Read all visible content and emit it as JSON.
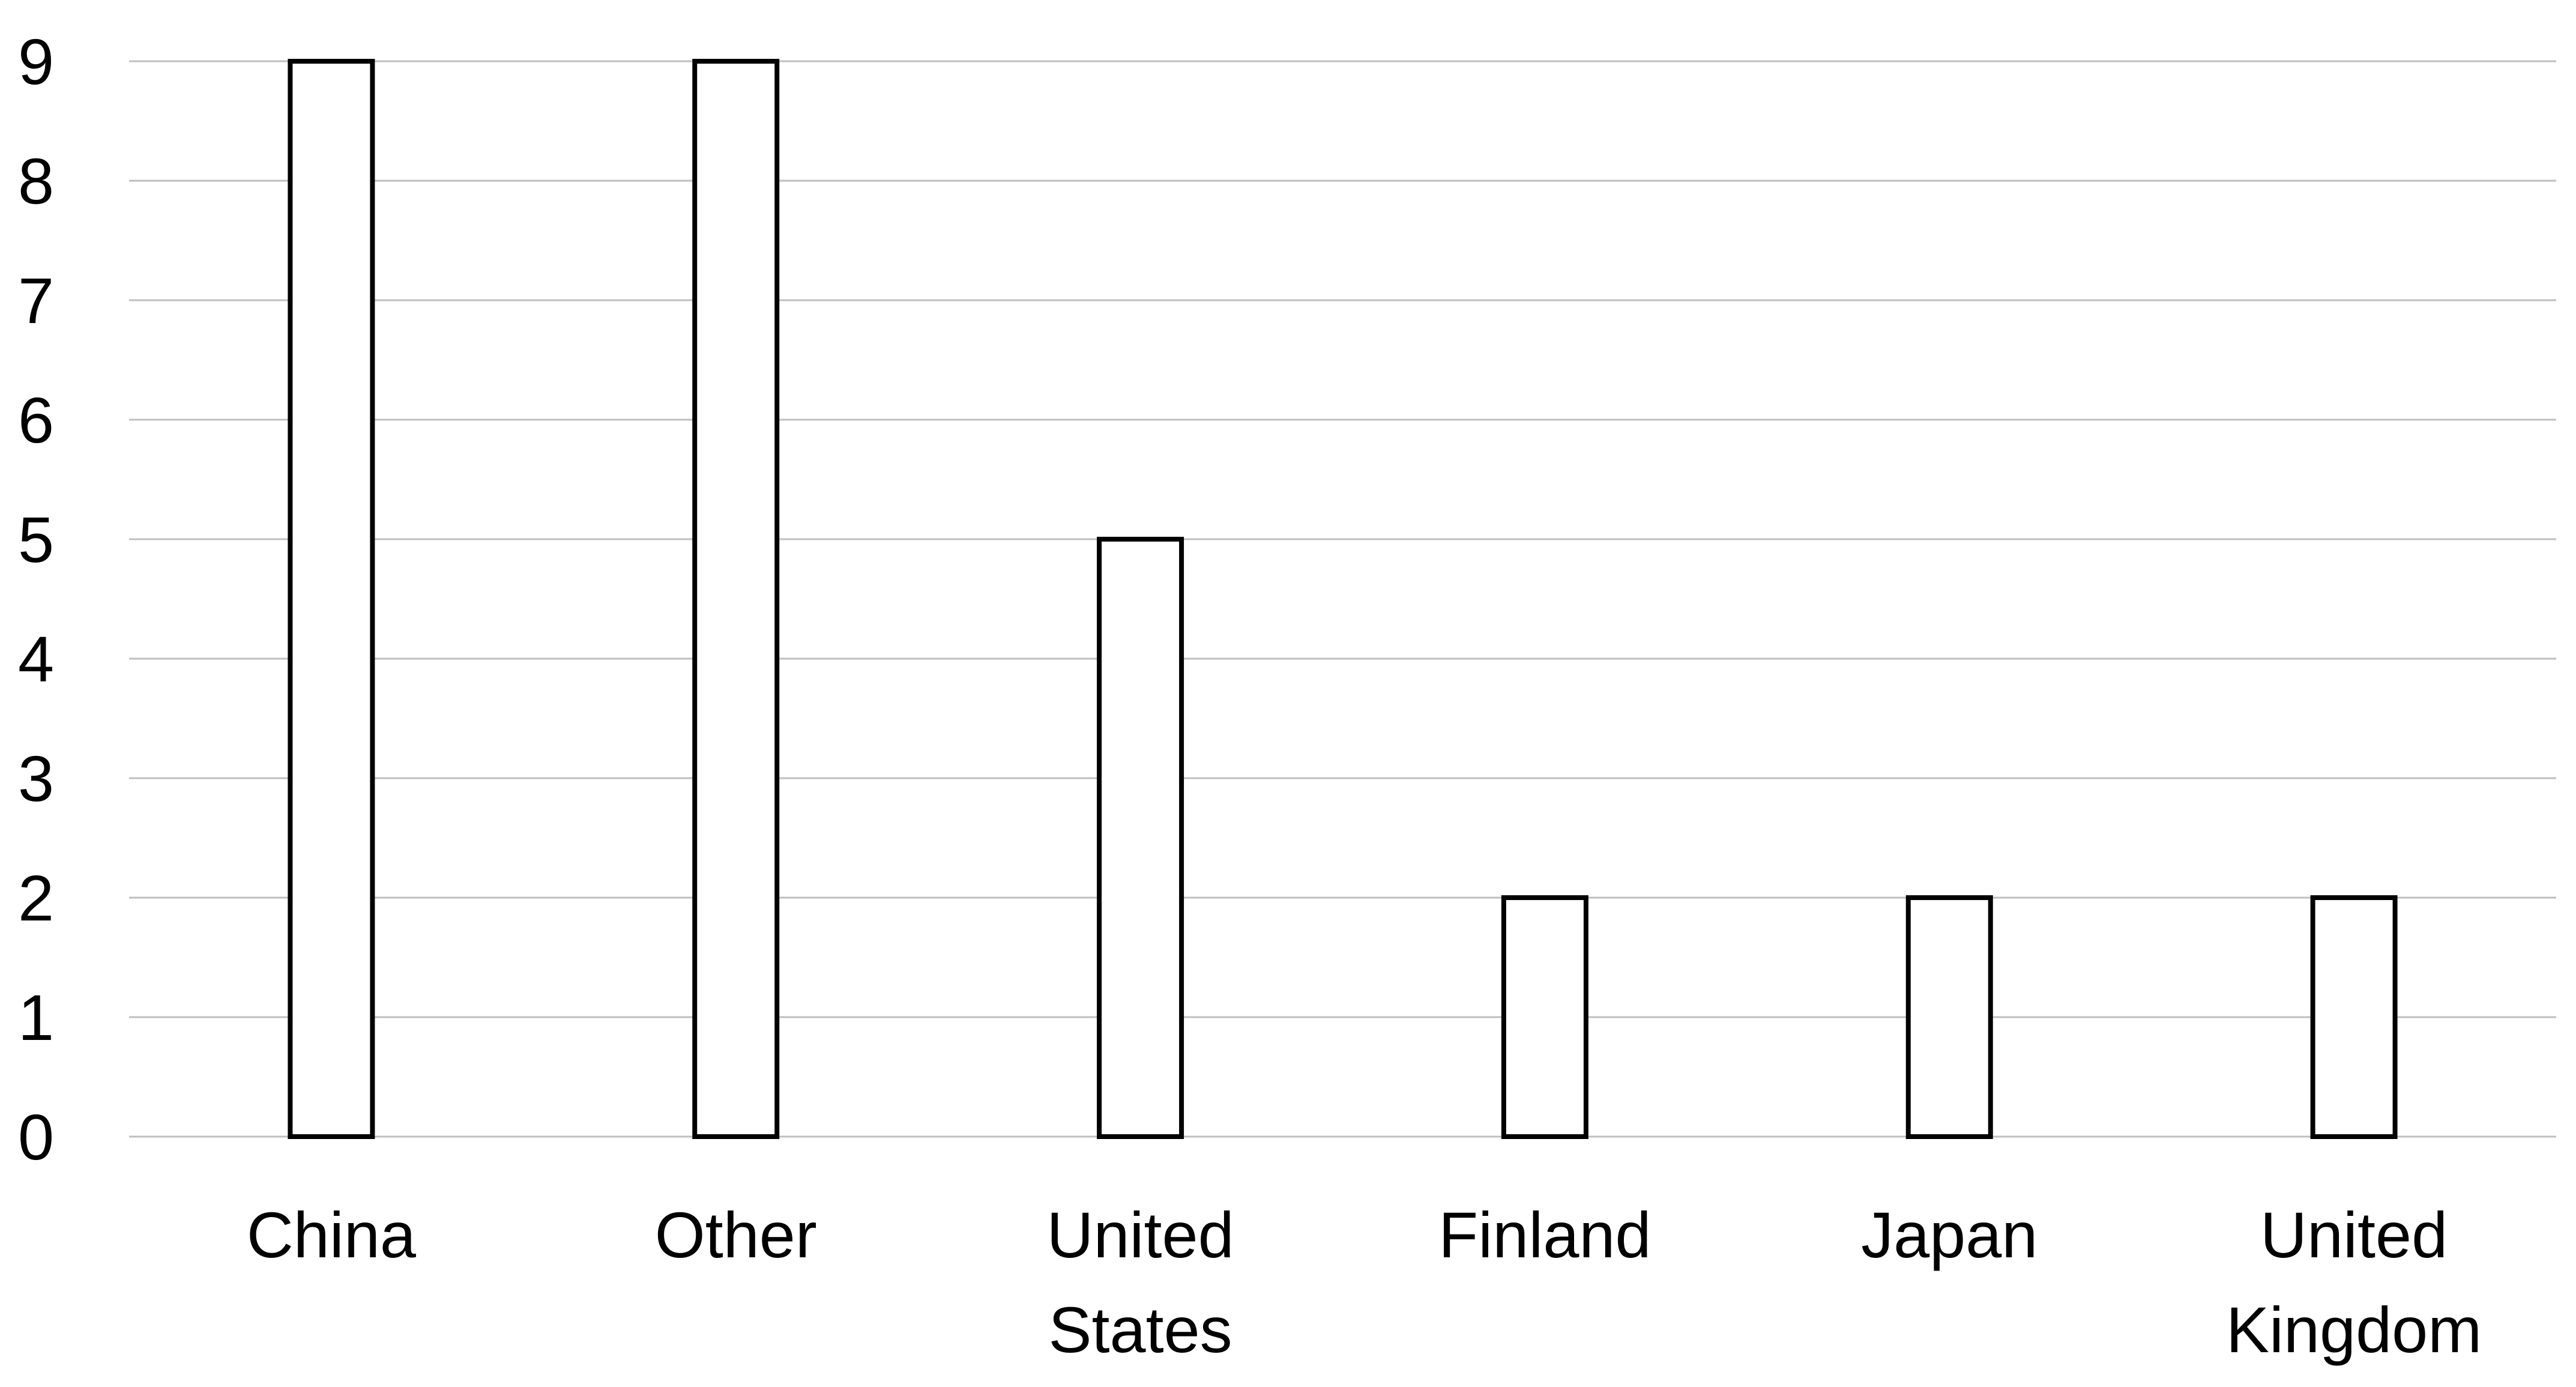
{
  "chart_data": {
    "type": "bar",
    "title": "",
    "xlabel": "",
    "ylabel": "",
    "categories": [
      [
        "China"
      ],
      [
        "Other"
      ],
      [
        "United",
        "States"
      ],
      [
        "Finland"
      ],
      [
        "Japan"
      ],
      [
        "United",
        "Kingdom"
      ]
    ],
    "values": [
      9,
      9,
      5,
      2,
      2,
      2
    ],
    "ylim": [
      0,
      9
    ],
    "yticks": [
      0,
      1,
      2,
      3,
      4,
      5,
      6,
      7,
      8,
      9
    ],
    "grid": true,
    "legend": "none",
    "colors": {
      "bar_fill": "#ffffff",
      "bar_stroke": "#000000",
      "grid": "#bfbfbf"
    }
  }
}
